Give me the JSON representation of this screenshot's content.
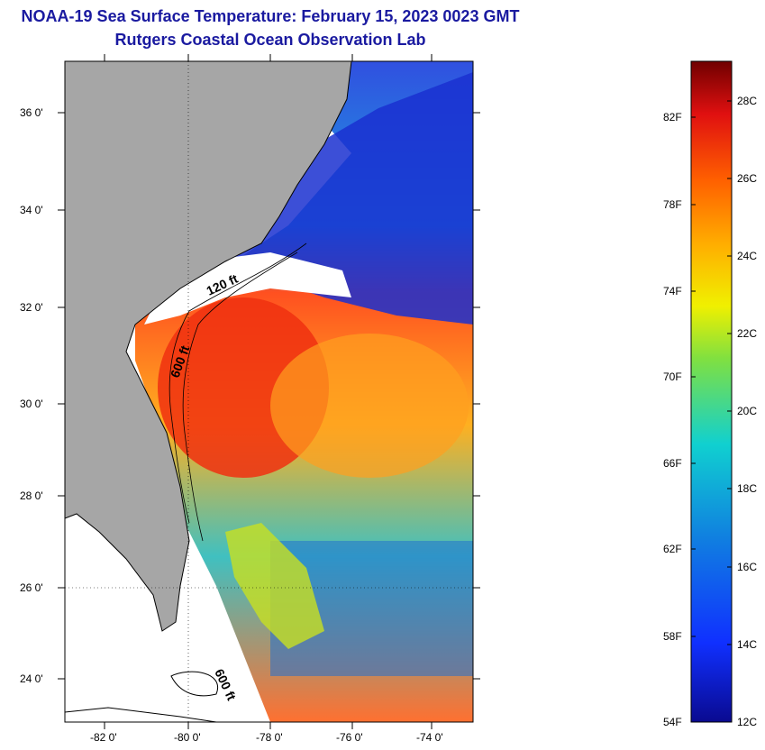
{
  "header": {
    "title": "NOAA-19 Sea Surface Temperature:  February 15, 2023 0023 GMT",
    "subtitle": "Rutgers Coastal Ocean Observation Lab"
  },
  "map": {
    "lat_labels": [
      "36 0'",
      "34 0'",
      "32 0'",
      "30 0'",
      "28 0'",
      "26 0'",
      "24 0'"
    ],
    "lon_labels": [
      "-82 0'",
      "-80 0'",
      "-78 0'",
      "-76 0'",
      "-74 0'"
    ],
    "contour_labels": [
      "120 ft",
      "600 ft",
      "600 ft"
    ],
    "colors": {
      "land": "#a6a6a6",
      "clouds": "#ffffff",
      "graticule": "#000000"
    }
  },
  "colorbar": {
    "fahrenheit_labels": [
      "82F",
      "78F",
      "74F",
      "70F",
      "66F",
      "62F",
      "58F",
      "54F"
    ],
    "celsius_labels": [
      "28C",
      "26C",
      "24C",
      "22C",
      "20C",
      "18C",
      "16C",
      "14C",
      "12C"
    ]
  }
}
